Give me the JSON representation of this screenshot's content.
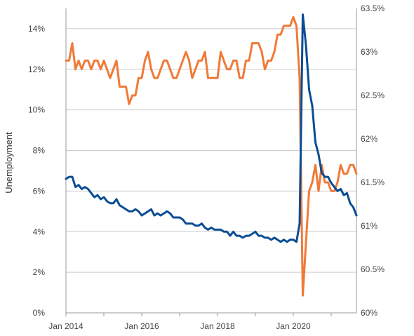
{
  "chart_data": {
    "type": "line",
    "ylabel": "Unemployment",
    "y_left": {
      "min": 0,
      "max": 15,
      "ticks": [
        0,
        2,
        4,
        6,
        8,
        10,
        12,
        14
      ],
      "tick_labels": [
        "0%",
        "2%",
        "4%",
        "6%",
        "8%",
        "10%",
        "12%",
        "14%"
      ]
    },
    "y_right": {
      "min": 60,
      "max": 63.5,
      "ticks": [
        60,
        60.5,
        61,
        61.5,
        62,
        62.5,
        63,
        63.5
      ],
      "tick_labels": [
        "60%",
        "60.5%",
        "61%",
        "61.5%",
        "62%",
        "62.5%",
        "63%",
        "63.5%"
      ]
    },
    "x_axis": {
      "min": "2014-01",
      "max": "2021-09",
      "ticks": [
        "2014-01",
        "2016-01",
        "2018-01",
        "2020-01"
      ],
      "tick_labels": [
        "Jan 2014",
        "Jan 2016",
        "Jan 2018",
        "Jan 2020"
      ]
    },
    "grid": "horizontal",
    "colors": {
      "unemployment": "#0a4d94",
      "participation": "#f07a38",
      "grid": "#cccccc",
      "axis": "#999999"
    },
    "series": [
      {
        "axis": "left",
        "color": "#0a4d94",
        "points": [
          [
            "2014-01",
            6.6
          ],
          [
            "2014-02",
            6.7
          ],
          [
            "2014-03",
            6.7
          ],
          [
            "2014-04",
            6.2
          ],
          [
            "2014-05",
            6.3
          ],
          [
            "2014-06",
            6.1
          ],
          [
            "2014-07",
            6.2
          ],
          [
            "2014-08",
            6.1
          ],
          [
            "2014-09",
            5.9
          ],
          [
            "2014-10",
            5.7
          ],
          [
            "2014-11",
            5.8
          ],
          [
            "2014-12",
            5.6
          ],
          [
            "2015-01",
            5.7
          ],
          [
            "2015-02",
            5.5
          ],
          [
            "2015-03",
            5.4
          ],
          [
            "2015-04",
            5.4
          ],
          [
            "2015-05",
            5.6
          ],
          [
            "2015-06",
            5.3
          ],
          [
            "2015-07",
            5.2
          ],
          [
            "2015-08",
            5.1
          ],
          [
            "2015-09",
            5.0
          ],
          [
            "2015-10",
            5.0
          ],
          [
            "2015-11",
            5.1
          ],
          [
            "2015-12",
            5.0
          ],
          [
            "2016-01",
            4.8
          ],
          [
            "2016-02",
            4.9
          ],
          [
            "2016-03",
            5.0
          ],
          [
            "2016-04",
            5.1
          ],
          [
            "2016-05",
            4.8
          ],
          [
            "2016-06",
            4.9
          ],
          [
            "2016-07",
            4.8
          ],
          [
            "2016-08",
            4.9
          ],
          [
            "2016-09",
            5.0
          ],
          [
            "2016-10",
            4.9
          ],
          [
            "2016-11",
            4.7
          ],
          [
            "2016-12",
            4.7
          ],
          [
            "2017-01",
            4.7
          ],
          [
            "2017-02",
            4.6
          ],
          [
            "2017-03",
            4.4
          ],
          [
            "2017-04",
            4.4
          ],
          [
            "2017-05",
            4.4
          ],
          [
            "2017-06",
            4.3
          ],
          [
            "2017-07",
            4.3
          ],
          [
            "2017-08",
            4.4
          ],
          [
            "2017-09",
            4.2
          ],
          [
            "2017-10",
            4.1
          ],
          [
            "2017-11",
            4.2
          ],
          [
            "2017-12",
            4.1
          ],
          [
            "2018-01",
            4.1
          ],
          [
            "2018-02",
            4.1
          ],
          [
            "2018-03",
            4.0
          ],
          [
            "2018-04",
            4.0
          ],
          [
            "2018-05",
            3.8
          ],
          [
            "2018-06",
            4.0
          ],
          [
            "2018-07",
            3.8
          ],
          [
            "2018-08",
            3.8
          ],
          [
            "2018-09",
            3.7
          ],
          [
            "2018-10",
            3.8
          ],
          [
            "2018-11",
            3.8
          ],
          [
            "2018-12",
            3.9
          ],
          [
            "2019-01",
            4.0
          ],
          [
            "2019-02",
            3.8
          ],
          [
            "2019-03",
            3.8
          ],
          [
            "2019-04",
            3.7
          ],
          [
            "2019-05",
            3.7
          ],
          [
            "2019-06",
            3.6
          ],
          [
            "2019-07",
            3.7
          ],
          [
            "2019-08",
            3.6
          ],
          [
            "2019-09",
            3.5
          ],
          [
            "2019-10",
            3.6
          ],
          [
            "2019-11",
            3.5
          ],
          [
            "2019-12",
            3.6
          ],
          [
            "2020-01",
            3.6
          ],
          [
            "2020-02",
            3.5
          ],
          [
            "2020-03",
            4.4
          ],
          [
            "2020-04",
            14.7
          ],
          [
            "2020-05",
            13.2
          ],
          [
            "2020-06",
            11.0
          ],
          [
            "2020-07",
            10.2
          ],
          [
            "2020-08",
            8.4
          ],
          [
            "2020-09",
            7.8
          ],
          [
            "2020-10",
            6.9
          ],
          [
            "2020-11",
            6.7
          ],
          [
            "2020-12",
            6.7
          ],
          [
            "2021-01",
            6.4
          ],
          [
            "2021-02",
            6.2
          ],
          [
            "2021-03",
            6.0
          ],
          [
            "2021-04",
            6.1
          ],
          [
            "2021-05",
            5.8
          ],
          [
            "2021-06",
            5.9
          ],
          [
            "2021-07",
            5.4
          ],
          [
            "2021-08",
            5.2
          ],
          [
            "2021-09",
            4.8
          ]
        ]
      },
      {
        "axis": "right",
        "color": "#f07a38",
        "points": [
          [
            "2014-01",
            62.9
          ],
          [
            "2014-02",
            62.9
          ],
          [
            "2014-03",
            63.1
          ],
          [
            "2014-04",
            62.8
          ],
          [
            "2014-05",
            62.9
          ],
          [
            "2014-06",
            62.8
          ],
          [
            "2014-07",
            62.9
          ],
          [
            "2014-08",
            62.9
          ],
          [
            "2014-09",
            62.8
          ],
          [
            "2014-10",
            62.9
          ],
          [
            "2014-11",
            62.9
          ],
          [
            "2014-12",
            62.8
          ],
          [
            "2015-01",
            62.9
          ],
          [
            "2015-02",
            62.8
          ],
          [
            "2015-03",
            62.7
          ],
          [
            "2015-04",
            62.8
          ],
          [
            "2015-05",
            62.9
          ],
          [
            "2015-06",
            62.6
          ],
          [
            "2015-07",
            62.6
          ],
          [
            "2015-08",
            62.6
          ],
          [
            "2015-09",
            62.4
          ],
          [
            "2015-10",
            62.5
          ],
          [
            "2015-11",
            62.5
          ],
          [
            "2015-12",
            62.7
          ],
          [
            "2016-01",
            62.7
          ],
          [
            "2016-02",
            62.9
          ],
          [
            "2016-03",
            63.0
          ],
          [
            "2016-04",
            62.8
          ],
          [
            "2016-05",
            62.7
          ],
          [
            "2016-06",
            62.7
          ],
          [
            "2016-07",
            62.8
          ],
          [
            "2016-08",
            62.9
          ],
          [
            "2016-09",
            62.9
          ],
          [
            "2016-10",
            62.8
          ],
          [
            "2016-11",
            62.7
          ],
          [
            "2016-12",
            62.7
          ],
          [
            "2017-01",
            62.8
          ],
          [
            "2017-02",
            62.9
          ],
          [
            "2017-03",
            63.0
          ],
          [
            "2017-04",
            62.9
          ],
          [
            "2017-05",
            62.7
          ],
          [
            "2017-06",
            62.8
          ],
          [
            "2017-07",
            62.9
          ],
          [
            "2017-08",
            62.9
          ],
          [
            "2017-09",
            63.0
          ],
          [
            "2017-10",
            62.7
          ],
          [
            "2017-11",
            62.7
          ],
          [
            "2017-12",
            62.7
          ],
          [
            "2018-01",
            62.7
          ],
          [
            "2018-02",
            63.0
          ],
          [
            "2018-03",
            62.9
          ],
          [
            "2018-04",
            62.8
          ],
          [
            "2018-05",
            62.8
          ],
          [
            "2018-06",
            62.9
          ],
          [
            "2018-07",
            62.9
          ],
          [
            "2018-08",
            62.7
          ],
          [
            "2018-09",
            62.7
          ],
          [
            "2018-10",
            62.9
          ],
          [
            "2018-11",
            62.9
          ],
          [
            "2018-12",
            63.1
          ],
          [
            "2019-01",
            63.1
          ],
          [
            "2019-02",
            63.1
          ],
          [
            "2019-03",
            63.0
          ],
          [
            "2019-04",
            62.8
          ],
          [
            "2019-05",
            62.9
          ],
          [
            "2019-06",
            62.9
          ],
          [
            "2019-07",
            63.0
          ],
          [
            "2019-08",
            63.2
          ],
          [
            "2019-09",
            63.2
          ],
          [
            "2019-10",
            63.3
          ],
          [
            "2019-11",
            63.3
          ],
          [
            "2019-12",
            63.3
          ],
          [
            "2020-01",
            63.4
          ],
          [
            "2020-02",
            63.3
          ],
          [
            "2020-03",
            62.7
          ],
          [
            "2020-04",
            60.2
          ],
          [
            "2020-05",
            60.8
          ],
          [
            "2020-06",
            61.4
          ],
          [
            "2020-07",
            61.5
          ],
          [
            "2020-08",
            61.7
          ],
          [
            "2020-09",
            61.4
          ],
          [
            "2020-10",
            61.7
          ],
          [
            "2020-11",
            61.5
          ],
          [
            "2020-12",
            61.5
          ],
          [
            "2021-01",
            61.4
          ],
          [
            "2021-02",
            61.4
          ],
          [
            "2021-03",
            61.5
          ],
          [
            "2021-04",
            61.7
          ],
          [
            "2021-05",
            61.6
          ],
          [
            "2021-06",
            61.6
          ],
          [
            "2021-07",
            61.7
          ],
          [
            "2021-08",
            61.7
          ],
          [
            "2021-09",
            61.6
          ]
        ]
      }
    ]
  }
}
